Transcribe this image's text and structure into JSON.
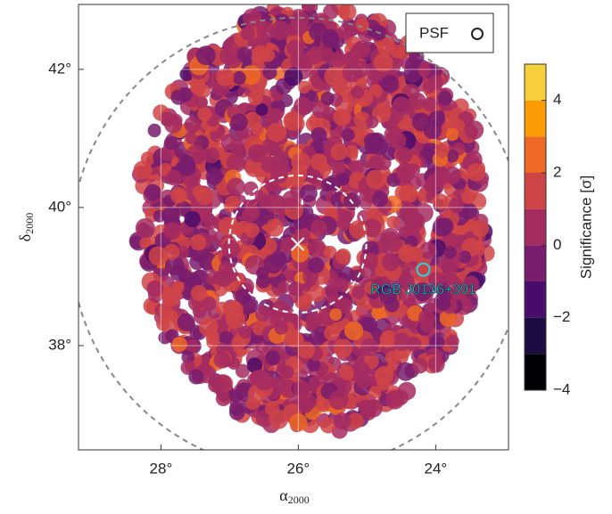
{
  "chart_data": {
    "type": "skymap",
    "xlabel": {
      "symbol": "α",
      "subscript": "2000"
    },
    "ylabel": {
      "symbol": "δ",
      "subscript": "2000"
    },
    "xlim": [
      29.2,
      22.94
    ],
    "ylim": [
      36.49,
      42.94
    ],
    "xticks": [
      {
        "value": 28,
        "label": "28°"
      },
      {
        "value": 26,
        "label": "26°"
      },
      {
        "value": 24,
        "label": "24°"
      }
    ],
    "yticks": [
      {
        "value": 38,
        "label": "38°"
      },
      {
        "value": 40,
        "label": "40°"
      },
      {
        "value": 42,
        "label": "42°"
      }
    ],
    "grid": true,
    "colorbar": {
      "label": "Significance [σ]",
      "lim": [
        -4,
        5
      ],
      "ticks": [
        {
          "value": -4,
          "label": "−4"
        },
        {
          "value": -2,
          "label": "−2"
        },
        0,
        2,
        4
      ],
      "colors": [
        "#000004",
        "#1b0c41",
        "#4a0c6b",
        "#781c6d",
        "#a52c60",
        "#cf4446",
        "#ed6925",
        "#fb9b06",
        "#f7d13d"
      ]
    },
    "legend": {
      "label": "PSF",
      "position": "upper right"
    },
    "source": {
      "name": "RGB J0136+391",
      "ra": 24.18,
      "dec": 39.1,
      "color": "#22d3e6"
    },
    "center_marker": {
      "ra": 26.01,
      "dec": 39.47
    },
    "regions": [
      {
        "ra": 26.01,
        "dec": 39.47,
        "radius": 1.0,
        "color": "#ffffff"
      },
      {
        "ra": 26.01,
        "dec": 39.47,
        "radius": 3.3,
        "color": "#888888"
      }
    ]
  }
}
